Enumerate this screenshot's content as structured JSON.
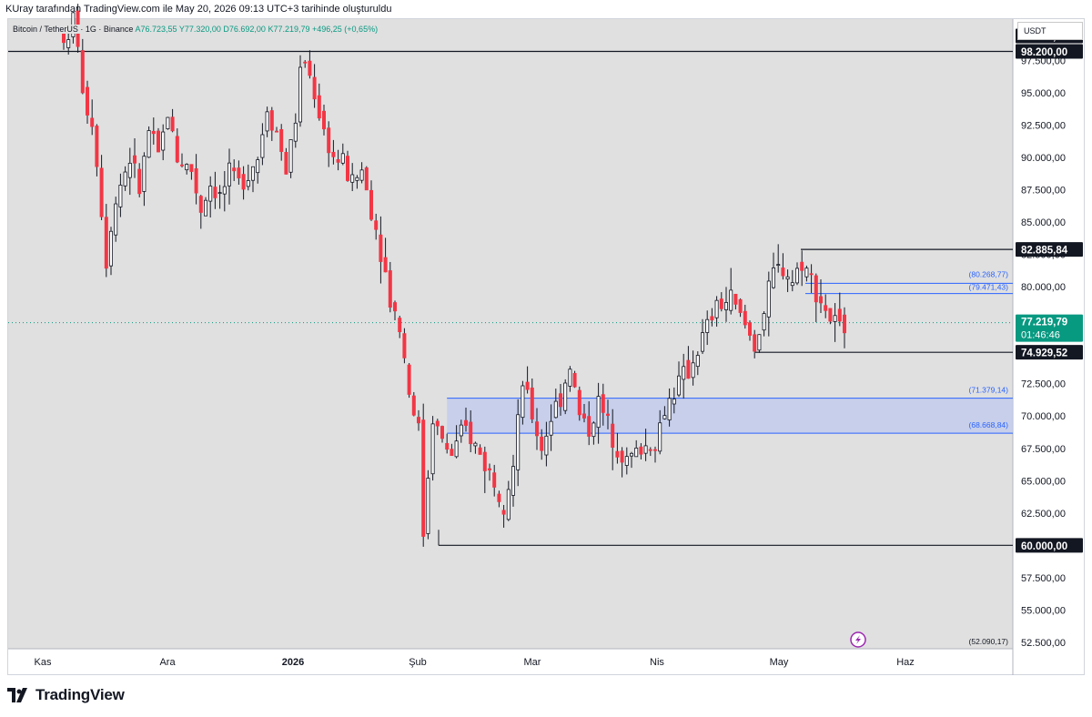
{
  "header": {
    "caption": "KUray tarafından TradingView.com ile May 20, 2026 09:13 UTC+3 tarihinde oluşturuldu"
  },
  "symbol": {
    "name": "Bitcoin / TetherUS",
    "interval": "1G",
    "exchange": "Binance",
    "open": "A76.723,55",
    "high": "Y77.320,00",
    "low": "D76.692,00",
    "close": "K77.219,79",
    "change": "+496,25 (+0,65%)"
  },
  "currency_label": "USDT",
  "footer": {
    "brand": "TradingView"
  },
  "chart_data": {
    "type": "candlestick",
    "title": "",
    "y_axis": {
      "ticks": [
        "52.500,00",
        "55.000,00",
        "57.500,00",
        "60.000,00",
        "62.500,00",
        "65.000,00",
        "67.500,00",
        "70.000,00",
        "72.500,00",
        "75.000,00",
        "77.500,00",
        "80.000,00",
        "82.500,00",
        "85.000,00",
        "87.500,00",
        "90.000,00",
        "92.500,00",
        "95.000,00",
        "97.500,00",
        "100.000,00"
      ],
      "range": [
        52000,
        100700
      ]
    },
    "x_axis": {
      "ticks": [
        {
          "label": "Kas",
          "bold": false
        },
        {
          "label": "Ara",
          "bold": false
        },
        {
          "label": "2026",
          "bold": true
        },
        {
          "label": "Şub",
          "bold": false
        },
        {
          "label": "Mar",
          "bold": false
        },
        {
          "label": "Nis",
          "bold": false
        },
        {
          "label": "May",
          "bold": false
        },
        {
          "label": "Haz",
          "bold": false
        }
      ]
    },
    "price_path": [
      [
        1,
        99500
      ],
      [
        2,
        98500
      ],
      [
        3,
        101000
      ],
      [
        4,
        99000
      ],
      [
        5,
        94500
      ],
      [
        7,
        93000
      ],
      [
        9,
        86000
      ],
      [
        10,
        82000
      ],
      [
        11,
        85000
      ],
      [
        13,
        88000
      ],
      [
        15,
        90000
      ],
      [
        17,
        87500
      ],
      [
        19,
        92000
      ],
      [
        21,
        90000
      ],
      [
        23,
        93500
      ],
      [
        25,
        90000
      ],
      [
        28,
        89000
      ],
      [
        30,
        86000
      ],
      [
        32,
        88000
      ],
      [
        34,
        87000
      ],
      [
        36,
        88500
      ],
      [
        38,
        88000
      ],
      [
        40,
        89000
      ],
      [
        42,
        90000
      ],
      [
        44,
        94000
      ],
      [
        46,
        92000
      ],
      [
        48,
        89000
      ],
      [
        50,
        93000
      ],
      [
        51,
        96500
      ],
      [
        52,
        97500
      ],
      [
        54,
        95000
      ],
      [
        56,
        92000
      ],
      [
        58,
        90000
      ],
      [
        60,
        89500
      ],
      [
        62,
        88000
      ],
      [
        64,
        89000
      ],
      [
        66,
        86000
      ],
      [
        68,
        83000
      ],
      [
        70,
        79000
      ],
      [
        72,
        77000
      ],
      [
        74,
        72000
      ],
      [
        76,
        69000
      ],
      [
        77,
        61000
      ],
      [
        79,
        70000
      ],
      [
        81,
        68000
      ],
      [
        83,
        67000
      ],
      [
        86,
        69000
      ],
      [
        89,
        67000
      ],
      [
        92,
        65000
      ],
      [
        94,
        63500
      ],
      [
        96,
        66000
      ],
      [
        98,
        72500
      ],
      [
        100,
        70000
      ],
      [
        102,
        67500
      ],
      [
        104,
        70000
      ],
      [
        106,
        71500
      ],
      [
        108,
        74000
      ],
      [
        110,
        70000
      ],
      [
        112,
        69000
      ],
      [
        114,
        71000
      ],
      [
        117,
        68500
      ],
      [
        120,
        66500
      ],
      [
        123,
        67500
      ],
      [
        126,
        68000
      ],
      [
        128,
        70500
      ],
      [
        130,
        72000
      ],
      [
        133,
        73500
      ],
      [
        136,
        76000
      ],
      [
        139,
        78500
      ],
      [
        142,
        79000
      ],
      [
        145,
        77000
      ],
      [
        147,
        75500
      ],
      [
        149,
        78000
      ],
      [
        151,
        81000
      ],
      [
        153,
        81500
      ],
      [
        155,
        80500
      ],
      [
        157,
        82000
      ],
      [
        159,
        80500
      ],
      [
        161,
        79000
      ],
      [
        163,
        77500
      ],
      [
        165,
        76700
      ],
      [
        166,
        77220
      ]
    ],
    "days_shown": 166,
    "horizontal_levels": [
      {
        "value": 98200.0,
        "label": "98.200,00",
        "style": "black"
      },
      {
        "value": 82885.84,
        "label": "82.885,84",
        "style": "black"
      },
      {
        "value": 74929.52,
        "label": "74.929,52",
        "style": "black"
      },
      {
        "value": 60000.0,
        "label": "60.000,00",
        "style": "black"
      }
    ],
    "fib_lines": [
      {
        "value": 80268.77,
        "label": "(80.268,77)"
      },
      {
        "value": 79471.43,
        "label": "(79.471,43)"
      }
    ],
    "zone": {
      "top": 71379.14,
      "bottom": 68668.84,
      "top_label": "(71.379,14)",
      "bottom_label": "(68.668,84)"
    },
    "current_price": {
      "value": 77219.79,
      "label": "77.219,79",
      "countdown": "01:46:46",
      "color": "#089981"
    },
    "range_low_label": "(52.090,17)",
    "colors": {
      "up": "#089981",
      "down": "#f23645",
      "zone_fill": "#bfc9ee",
      "fib": "#2962ff"
    }
  }
}
